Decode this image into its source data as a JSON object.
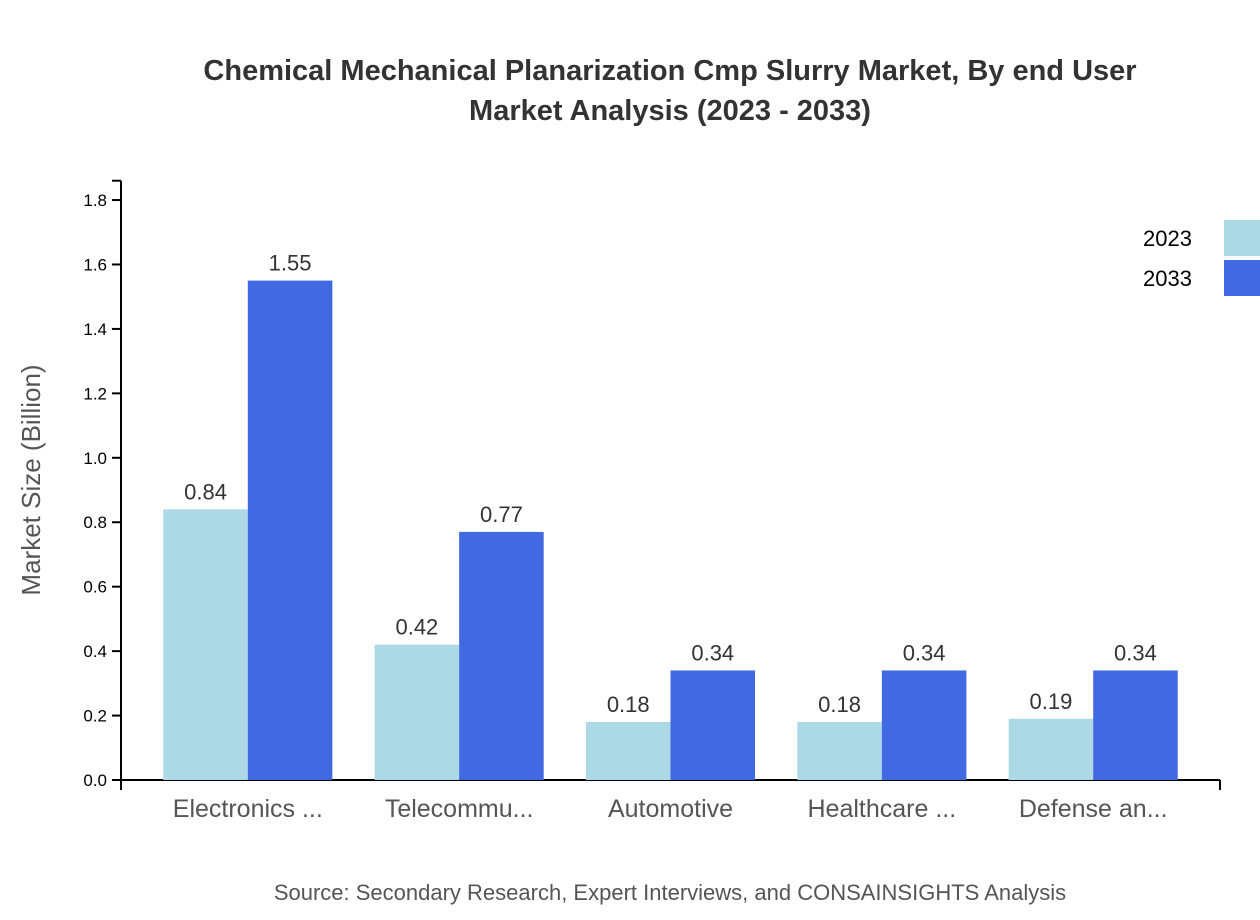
{
  "chart_data": {
    "type": "bar",
    "title_lines": [
      "Chemical Mechanical Planarization Cmp Slurry Market, By end User",
      "Market Analysis (2023 - 2033)"
    ],
    "xlabel": "",
    "ylabel": "Market Size (Billion)",
    "categories": [
      "Electronics ...",
      "Telecommu...",
      "Automotive",
      "Healthcare ...",
      "Defense an..."
    ],
    "series": [
      {
        "name": "2023",
        "color": "#add8e6",
        "values": [
          0.84,
          0.42,
          0.18,
          0.18,
          0.19
        ]
      },
      {
        "name": "2033",
        "color": "#4169e1",
        "values": [
          1.55,
          0.77,
          0.34,
          0.34,
          0.34
        ]
      }
    ],
    "ylim": [
      0,
      1.86
    ],
    "yticks": [
      "0.0",
      "0.2",
      "0.4",
      "0.6",
      "0.8",
      "1.0",
      "1.2",
      "1.4",
      "1.6",
      "1.8"
    ],
    "grid": false,
    "legend_position": "top-right",
    "source": "Source: Secondary Research, Expert Interviews, and CONSAINSIGHTS Analysis"
  }
}
